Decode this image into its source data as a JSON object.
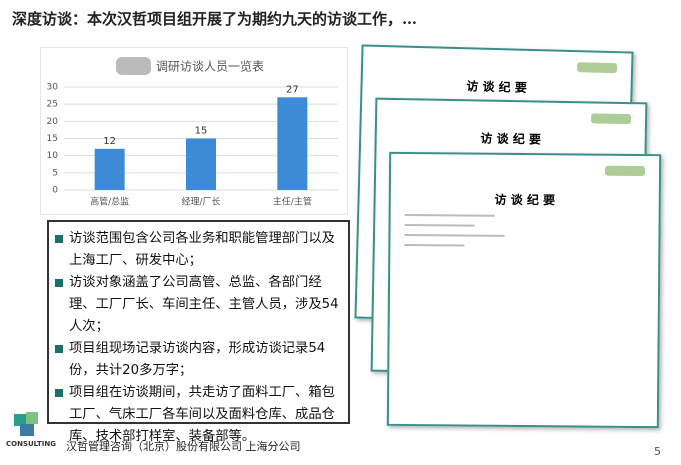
{
  "header": {
    "title": "深度访谈：本次汉哲项目组开展了为期约九天的访谈工作，…"
  },
  "chart_data": {
    "type": "bar",
    "title": "调研访谈人员一览表",
    "categories": [
      "高管/总监",
      "经理/厂长",
      "主任/主管"
    ],
    "values": [
      12,
      15,
      27
    ],
    "color": "#3d8bd6",
    "ylim": [
      0,
      30
    ],
    "yticks": [
      0,
      5,
      10,
      15,
      20,
      25,
      30
    ],
    "grid": true
  },
  "bullets": [
    "访谈范围包含公司各业务和职能管理部门以及上海工厂、研发中心；",
    "访谈对象涵盖了公司高管、总监、各部门经理、工厂厂长、车间主任、主管人员，涉及54人次；",
    "项目组现场记录访谈内容，形成访谈记录54份，共计20多万字；",
    "项目组在访谈期间，共走访了面料工厂、箱包工厂、气床工厂各车间以及面料仓库、成品仓库、技术部打样室、装备部等。"
  ],
  "documents": [
    {
      "title": "访 谈 纪 要"
    },
    {
      "title": "访 谈 纪 要"
    },
    {
      "title": "访 谈 纪 要"
    }
  ],
  "footer": {
    "logo": "CONSULTING",
    "company": "汉哲管理咨询（北京）股份有限公司 上海分公司",
    "page": "5"
  }
}
